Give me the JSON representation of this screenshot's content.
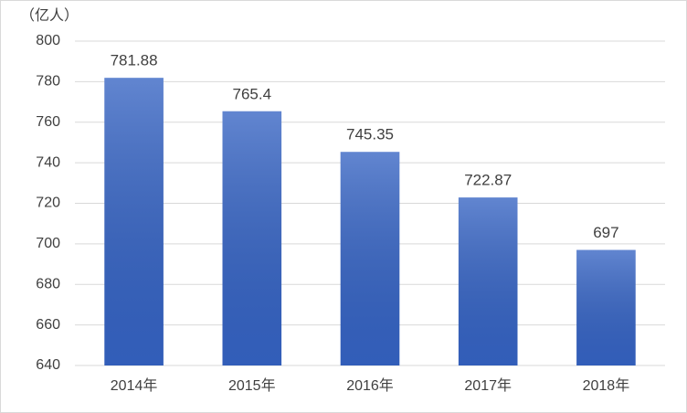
{
  "chart_data": {
    "type": "bar",
    "y_label": "（亿人）",
    "categories": [
      "2014年",
      "2015年",
      "2016年",
      "2017年",
      "2018年"
    ],
    "values": [
      781.88,
      765.4,
      745.35,
      722.87,
      697
    ],
    "color": "#3563c3",
    "ylim": [
      640,
      800
    ],
    "yticks": [
      640,
      660,
      680,
      700,
      720,
      740,
      760,
      780,
      800
    ],
    "grid": true,
    "data_labels": true
  }
}
